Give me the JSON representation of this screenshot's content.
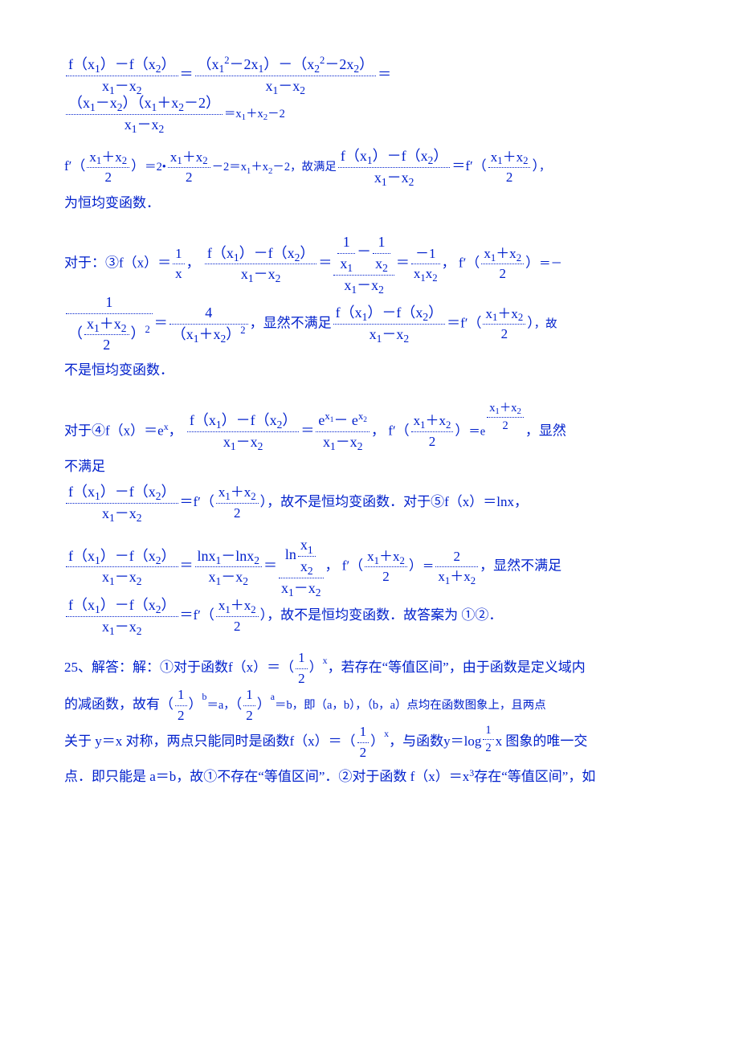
{
  "text_color": "#0020cc",
  "background_color": "#ffffff",
  "border_style": "dotted",
  "font_family": "SimSun / Times New Roman",
  "font_size_pt": 12,
  "l1_n1": "f（x",
  "l1_s1": "1",
  "l1_n2": "）－f（x",
  "l1_s2": "2",
  "l1_n3": "）",
  "l1_d1": "x",
  "l1_ds1": "1",
  "l1_d2": "－x",
  "l1_ds2": "2",
  "l1_eq": "＝",
  "l1_rn1": "（x",
  "l1_rs1": "1",
  "l1_rsup1": "2",
  "l1_rn2": "－2x",
  "l1_rs2": "1",
  "l1_rn3": "）－（x",
  "l1_rs3": "2",
  "l1_rsup2": "2",
  "l1_rn4": "－2x",
  "l1_rs4": "2",
  "l1_rn5": "）",
  "l1_rd1": "x",
  "l1_rds1": "1",
  "l1_rd2": "－x",
  "l1_rds2": "2",
  "l1_end": "＝",
  "l2_n1": "（x",
  "l2_s1": "1",
  "l2_n2": "－x",
  "l2_s2": "2",
  "l2_n3": "）（x",
  "l2_s3": "1",
  "l2_n4": "＋x",
  "l2_s4": "2",
  "l2_n5": "－2）",
  "l2_d1": "x",
  "l2_ds1": "1",
  "l2_d2": "－x",
  "l2_ds2": "2",
  "l2_end1": "＝x",
  "l2_es1": "1",
  "l2_end2": "＋x",
  "l2_es2": "2",
  "l2_end3": "－2",
  "l3_a": "f′（",
  "l3_fn": "x",
  "l3_fs1": "1",
  "l3_fn2": "＋x",
  "l3_fs2": "2",
  "l3_fd": "2",
  "l3_b": "）",
  "l3_c": "＝2•",
  "l3_gn": "x",
  "l3_gs1": "1",
  "l3_gn2": "＋x",
  "l3_gs2": "2",
  "l3_gd": "2",
  "l3_d": "－2＝x",
  "l3_ds1": "1",
  "l3_d2": "＋x",
  "l3_ds2": "2",
  "l3_d3": "－2，故满足",
  "l3_hn1": "f（x",
  "l3_hs1": "1",
  "l3_hn2": "）－f（x",
  "l3_hs2": "2",
  "l3_hn3": "）",
  "l3_hd1": "x",
  "l3_hds1": "1",
  "l3_hd2": "－x",
  "l3_hds2": "2",
  "l3_i": "＝f′（",
  "l3_in": "x",
  "l3_is1": "1",
  "l3_in2": "＋x",
  "l3_is2": "2",
  "l3_id": "2",
  "l3_j": "）",
  "l3_end": "，",
  "l4_text": "为恒均变函数．",
  "l5_a": "对于：③",
  "l5_b": "f（x）＝",
  "l5_fn": "1",
  "l5_fd": "x",
  "l5_c": "，",
  "l5_dn1": "f（x",
  "l5_ds1": "1",
  "l5_dn2": "）－f（x",
  "l5_ds2": "2",
  "l5_dn3": "）",
  "l5_dd1": "x",
  "l5_dds1": "1",
  "l5_dd2": "－x",
  "l5_dds2": "2",
  "l5_e": "＝",
  "l5_en_fn1": "1",
  "l5_en_fd1": "x",
  "l5_en_fs1": "1",
  "l5_en_m": "－",
  "l5_en_fn2": "1",
  "l5_en_fd2": "x",
  "l5_en_fs2": "2",
  "l5_ed1": "x",
  "l5_eds1": "1",
  "l5_ed2": "－x",
  "l5_eds2": "2",
  "l5_f": "＝",
  "l5_gn": "－1",
  "l5_gd1": "x",
  "l5_gds1": "1",
  "l5_gd2": "x",
  "l5_gds2": "2",
  "l5_h": "，",
  "l5_i": "f′（",
  "l5_in": "x",
  "l5_is1": "1",
  "l5_in2": "＋x",
  "l5_is2": "2",
  "l5_id": "2",
  "l5_j": "）",
  "l5_k": "＝－",
  "l6_fn": "1",
  "l6_fd1": "（",
  "l6_fdn": "x",
  "l6_fds1": "1",
  "l6_fdn2": "＋x",
  "l6_fds2": "2",
  "l6_fdd": "2",
  "l6_fd2": "）",
  "l6_fdsup": "2",
  "l6_a": "＝",
  "l6_bn": "4",
  "l6_bd1": "（x",
  "l6_bds1": "1",
  "l6_bd2": "＋x",
  "l6_bds2": "2",
  "l6_bd3": "）",
  "l6_bdsup": "2",
  "l6_c": "，显然不满足",
  "l6_dn1": "f（x",
  "l6_ds1": "1",
  "l6_dn2": "）－f（x",
  "l6_ds2": "2",
  "l6_dn3": "）",
  "l6_dd1": "x",
  "l6_dds1": "1",
  "l6_dd2": "－x",
  "l6_dds2": "2",
  "l6_e": "＝f′（",
  "l6_en": "x",
  "l6_es1": "1",
  "l6_en2": "＋x",
  "l6_es2": "2",
  "l6_ed": "2",
  "l6_f": "）",
  "l6_g": "，故",
  "l7_text": "不是恒均变函数．",
  "l8_a": "对于④f（x）＝e",
  "l8_sup": "x",
  "l8_b": "，",
  "l8_cn1": "f（x",
  "l8_cs1": "1",
  "l8_cn2": "）－f（x",
  "l8_cs2": "2",
  "l8_cn3": "）",
  "l8_cd1": "x",
  "l8_cds1": "1",
  "l8_cd2": "－x",
  "l8_cds2": "2",
  "l8_d": "＝",
  "l8_en1": "e",
  "l8_esup1": "x",
  "l8_esub1": "1",
  "l8_en2": "－ e",
  "l8_esup2": "x",
  "l8_esub2": "2",
  "l8_ed1": "x",
  "l8_eds1": "1",
  "l8_ed2": "－x",
  "l8_eds2": "2",
  "l8_f": "，",
  "l8_g": "f′（",
  "l8_gn": "x",
  "l8_gs1": "1",
  "l8_gn2": "＋x",
  "l8_gs2": "2",
  "l8_gd": "2",
  "l8_h": "）",
  "l8_i": "＝e",
  "l8_jn": "x",
  "l8_js1": "1",
  "l8_jn2": "＋x",
  "l8_js2": "2",
  "l8_jd": "2",
  "l8_k": "，显然",
  "l9_text": "不满足",
  "l10_an1": "f（x",
  "l10_as1": "1",
  "l10_an2": "）－f（x",
  "l10_as2": "2",
  "l10_an3": "）",
  "l10_ad1": "x",
  "l10_ads1": "1",
  "l10_ad2": "－x",
  "l10_ads2": "2",
  "l10_b": "＝f′（",
  "l10_bn": "x",
  "l10_bs1": "1",
  "l10_bn2": "＋x",
  "l10_bs2": "2",
  "l10_bd": "2",
  "l10_c": "）",
  "l10_d": "，故不是恒均变函数．对于⑤f（x）＝lnx，",
  "l11_an1": "f（x",
  "l11_as1": "1",
  "l11_an2": "）－f（x",
  "l11_as2": "2",
  "l11_an3": "）",
  "l11_ad1": "x",
  "l11_ads1": "1",
  "l11_ad2": "－x",
  "l11_ads2": "2",
  "l11_b": "＝",
  "l11_cn1": "lnx",
  "l11_cs1": "1",
  "l11_cn2": "－lnx",
  "l11_cs2": "2",
  "l11_cd1": "x",
  "l11_cds1": "1",
  "l11_cd2": "－x",
  "l11_cds2": "2",
  "l11_d": "＝",
  "l11_en": "ln",
  "l11_efn": "x",
  "l11_efs1": "1",
  "l11_efd": "x",
  "l11_efs2": "2",
  "l11_ed1": "x",
  "l11_eds1": "1",
  "l11_ed2": "－x",
  "l11_eds2": "2",
  "l11_e2": "，",
  "l11_f": "f′（",
  "l11_fn": "x",
  "l11_fs1": "1",
  "l11_fn2": "＋x",
  "l11_fs2": "2",
  "l11_fd": "2",
  "l11_g": "）",
  "l11_h": "＝",
  "l11_in": "2",
  "l11_id1": "x",
  "l11_ids1": "1",
  "l11_id2": "＋x",
  "l11_ids2": "2",
  "l11_j": "，显然不满足",
  "l12_an1": "f（x",
  "l12_as1": "1",
  "l12_an2": "）－f（x",
  "l12_as2": "2",
  "l12_an3": "）",
  "l12_ad1": "x",
  "l12_ads1": "1",
  "l12_ad2": "－x",
  "l12_ads2": "2",
  "l12_b": "＝f′（",
  "l12_bn": "x",
  "l12_bs1": "1",
  "l12_bn2": "＋x",
  "l12_bs2": "2",
  "l12_bd": "2",
  "l12_c": "）",
  "l12_d": "，故不是恒均变函数．故答案为 ①②．",
  "l13_a": "25、解答：解：①对于函数",
  "l13_b": "f（x）＝（",
  "l13_fn": "1",
  "l13_fd": "2",
  "l13_c": "）",
  "l13_sup": "x",
  "l13_d": "，若存在“等值区间”，由于函数是定义域内",
  "l14_a": "的减函数，故有",
  "l14_b": "（",
  "l14_fn": "1",
  "l14_fd": "2",
  "l14_c": "）",
  "l14_sup": "b",
  "l14_d": "＝a，",
  "l14_e": "（",
  "l14_fn2": "1",
  "l14_fd2": "2",
  "l14_f": "）",
  "l14_sup2": "a",
  "l14_g": "＝b，即（a，b），（b，a）点均在函数图象上，且两点",
  "l15_a": "关于 y＝x 对称，两点只能同时是函数",
  "l15_b": "f（x）＝（",
  "l15_fn": "1",
  "l15_fd": "2",
  "l15_c": "）",
  "l15_sup": "x",
  "l15_d": "，与函数",
  "l15_e": "y＝lo",
  "l15_f": "g",
  "l15_gn": "1",
  "l15_gd": "2",
  "l15_h": "x",
  "l15_i": " 图象的唯一交",
  "l16_a": "点．即只能是 a＝b，故①不存在“等值区间”．②对于函数 f（x）＝x",
  "l16_sup": "3",
  "l16_b": "存在“等值区间”，如"
}
